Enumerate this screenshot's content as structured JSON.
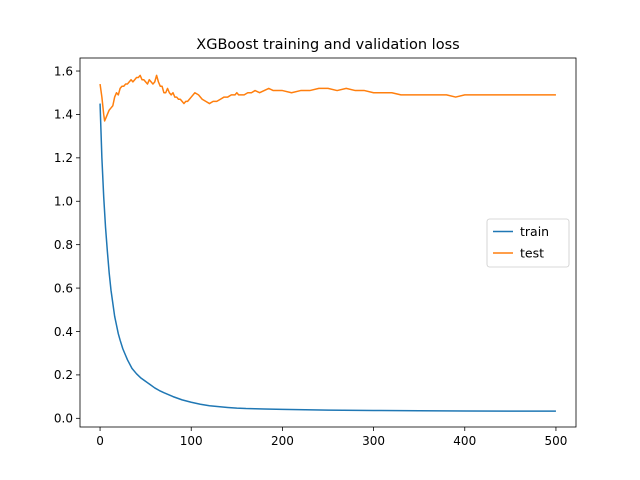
{
  "chart_data": {
    "type": "line",
    "title": "XGBoost training and validation loss",
    "xlabel": "",
    "ylabel": "",
    "xlim": [
      -22,
      522
    ],
    "ylim": [
      -0.04,
      1.66
    ],
    "xticks": [
      0,
      100,
      200,
      300,
      400,
      500
    ],
    "yticks": [
      0.0,
      0.2,
      0.4,
      0.6,
      0.8,
      1.0,
      1.2,
      1.4,
      1.6
    ],
    "xtick_labels": [
      "0",
      "100",
      "200",
      "300",
      "400",
      "500"
    ],
    "ytick_labels": [
      "0.0",
      "0.2",
      "0.4",
      "0.6",
      "0.8",
      "1.0",
      "1.2",
      "1.4",
      "1.6"
    ],
    "grid": false,
    "legend_position": "center-right",
    "series": [
      {
        "name": "train",
        "color": "#1f77b4",
        "x": [
          0,
          2,
          4,
          6,
          8,
          10,
          12,
          14,
          16,
          18,
          20,
          22,
          25,
          28,
          30,
          35,
          40,
          45,
          50,
          55,
          60,
          65,
          70,
          80,
          90,
          100,
          110,
          120,
          130,
          140,
          150,
          160,
          170,
          180,
          200,
          250,
          300,
          350,
          400,
          450,
          500
        ],
        "y": [
          1.45,
          1.2,
          1.02,
          0.88,
          0.77,
          0.67,
          0.59,
          0.53,
          0.47,
          0.43,
          0.39,
          0.36,
          0.32,
          0.29,
          0.27,
          0.23,
          0.205,
          0.185,
          0.17,
          0.155,
          0.14,
          0.128,
          0.118,
          0.1,
          0.085,
          0.074,
          0.065,
          0.058,
          0.054,
          0.05,
          0.047,
          0.045,
          0.044,
          0.043,
          0.041,
          0.038,
          0.036,
          0.035,
          0.034,
          0.033,
          0.033
        ]
      },
      {
        "name": "test",
        "color": "#ff7f0e",
        "x": [
          0,
          2,
          4,
          5,
          6,
          8,
          10,
          12,
          14,
          16,
          18,
          20,
          22,
          24,
          26,
          28,
          30,
          32,
          34,
          36,
          38,
          40,
          42,
          44,
          46,
          48,
          50,
          52,
          54,
          56,
          58,
          60,
          62,
          64,
          66,
          68,
          70,
          72,
          74,
          76,
          78,
          80,
          82,
          84,
          86,
          88,
          90,
          92,
          94,
          96,
          98,
          100,
          104,
          108,
          112,
          116,
          120,
          124,
          128,
          132,
          136,
          140,
          144,
          148,
          150,
          152,
          155,
          158,
          162,
          166,
          170,
          175,
          180,
          185,
          190,
          200,
          210,
          220,
          230,
          240,
          250,
          260,
          270,
          280,
          290,
          300,
          310,
          320,
          330,
          340,
          350,
          360,
          370,
          380,
          390,
          400,
          410,
          420,
          430,
          440,
          450,
          460,
          470,
          480,
          490,
          500
        ],
        "y": [
          1.54,
          1.48,
          1.4,
          1.37,
          1.38,
          1.4,
          1.42,
          1.43,
          1.44,
          1.48,
          1.5,
          1.49,
          1.52,
          1.53,
          1.53,
          1.54,
          1.54,
          1.55,
          1.56,
          1.55,
          1.56,
          1.57,
          1.57,
          1.58,
          1.56,
          1.56,
          1.55,
          1.54,
          1.56,
          1.55,
          1.54,
          1.55,
          1.58,
          1.55,
          1.53,
          1.53,
          1.5,
          1.5,
          1.52,
          1.5,
          1.49,
          1.5,
          1.48,
          1.48,
          1.47,
          1.47,
          1.46,
          1.45,
          1.46,
          1.46,
          1.47,
          1.48,
          1.5,
          1.49,
          1.47,
          1.46,
          1.45,
          1.46,
          1.46,
          1.47,
          1.48,
          1.48,
          1.49,
          1.49,
          1.5,
          1.49,
          1.49,
          1.49,
          1.5,
          1.5,
          1.51,
          1.5,
          1.51,
          1.52,
          1.51,
          1.51,
          1.5,
          1.51,
          1.51,
          1.52,
          1.52,
          1.51,
          1.52,
          1.51,
          1.51,
          1.5,
          1.5,
          1.5,
          1.49,
          1.49,
          1.49,
          1.49,
          1.49,
          1.49,
          1.48,
          1.49,
          1.49,
          1.49,
          1.49,
          1.49,
          1.49,
          1.49,
          1.49,
          1.49,
          1.49,
          1.49
        ]
      }
    ]
  }
}
